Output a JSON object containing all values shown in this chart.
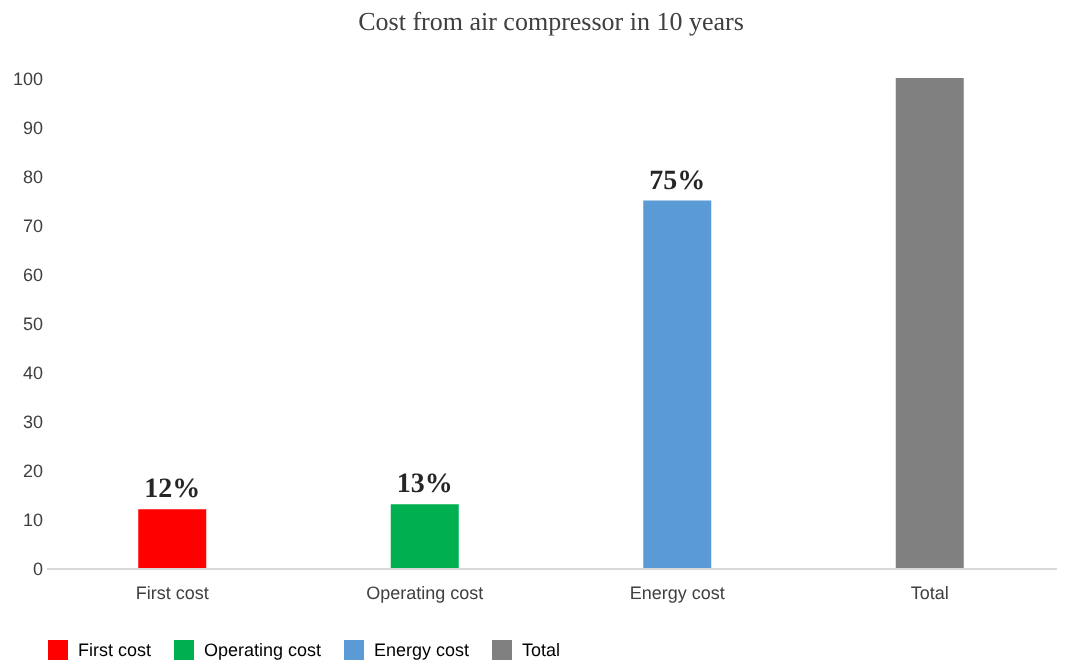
{
  "chart_data": {
    "type": "bar",
    "title": "Cost from air compressor in 10 years",
    "categories": [
      "First cost",
      "Operating cost",
      "Energy cost",
      "Total"
    ],
    "stacked": true,
    "series": [
      {
        "name": "First cost",
        "color": "#ff0000",
        "values": [
          12,
          null,
          null,
          null
        ],
        "value_labels": [
          "12%",
          null,
          null,
          null
        ]
      },
      {
        "name": "Operating cost",
        "color": "#00b050",
        "values": [
          null,
          13,
          null,
          null
        ],
        "value_labels": [
          null,
          "13%",
          null,
          null
        ]
      },
      {
        "name": "Energy cost",
        "color": "#5b9bd5",
        "values": [
          null,
          null,
          75,
          null
        ],
        "value_labels": [
          null,
          null,
          "75%",
          null
        ]
      },
      {
        "name": "Total",
        "color": "#808080",
        "values": [
          null,
          null,
          null,
          100
        ]
      }
    ],
    "ylim": [
      0,
      100
    ],
    "yticks": [
      0,
      10,
      20,
      30,
      40,
      50,
      60,
      70,
      80,
      90,
      100
    ],
    "grid": false,
    "legend": "bottom"
  }
}
